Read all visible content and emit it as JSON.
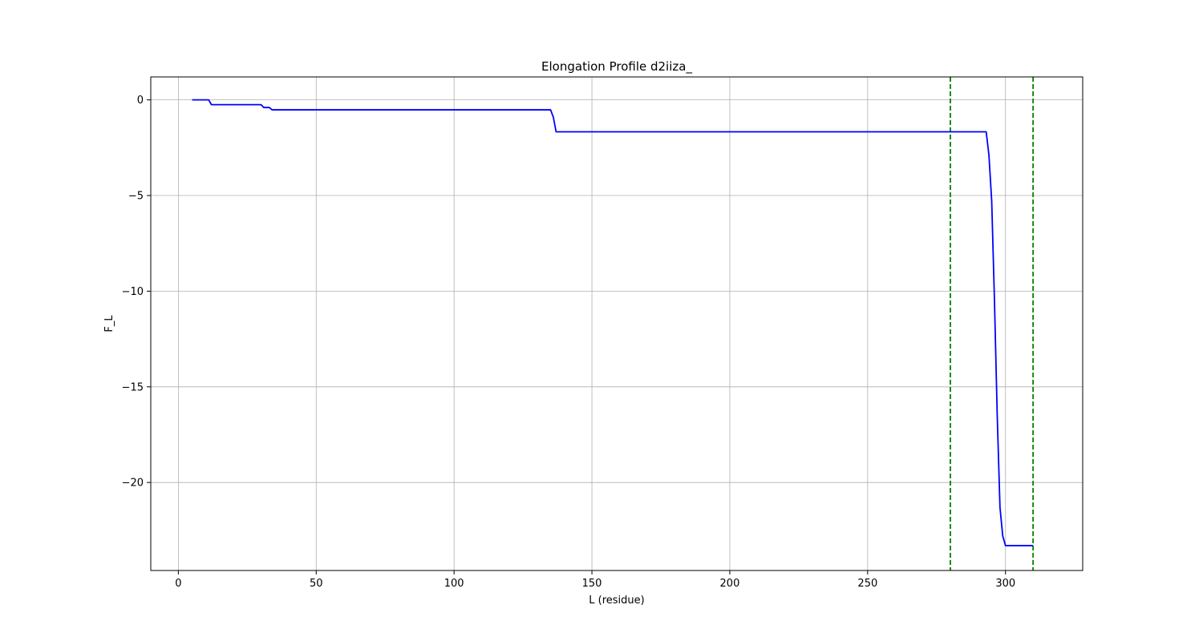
{
  "chart_data": {
    "type": "line",
    "title": "Elongation Profile d2iiza_",
    "xlabel": "L (residue)",
    "ylabel": "F_L",
    "xlim": [
      -10,
      328
    ],
    "ylim": [
      -24.6,
      1.2
    ],
    "xticks": [
      0,
      50,
      100,
      150,
      200,
      250,
      300
    ],
    "yticks": [
      0,
      -5,
      -10,
      -15,
      -20
    ],
    "xtick_labels": [
      "0",
      "50",
      "100",
      "150",
      "200",
      "250",
      "300"
    ],
    "ytick_labels": [
      "0",
      "−5",
      "−10",
      "−15",
      "−20"
    ],
    "grid": true,
    "series": [
      {
        "color": "#0000ff",
        "x": [
          5,
          11,
          12,
          30,
          31,
          33,
          34,
          135,
          136,
          137,
          293,
          294,
          295,
          296,
          297,
          298,
          299,
          300,
          310
        ],
        "y": [
          0,
          0,
          -0.25,
          -0.25,
          -0.4,
          -0.4,
          -0.52,
          -0.52,
          -0.9,
          -1.67,
          -1.67,
          -2.9,
          -5.3,
          -10.5,
          -16.5,
          -21.3,
          -22.8,
          -23.3,
          -23.3
        ]
      }
    ],
    "vlines": [
      {
        "x": 280,
        "color": "#008000",
        "style": "dashed"
      },
      {
        "x": 310,
        "color": "#008000",
        "style": "dashed"
      }
    ]
  }
}
